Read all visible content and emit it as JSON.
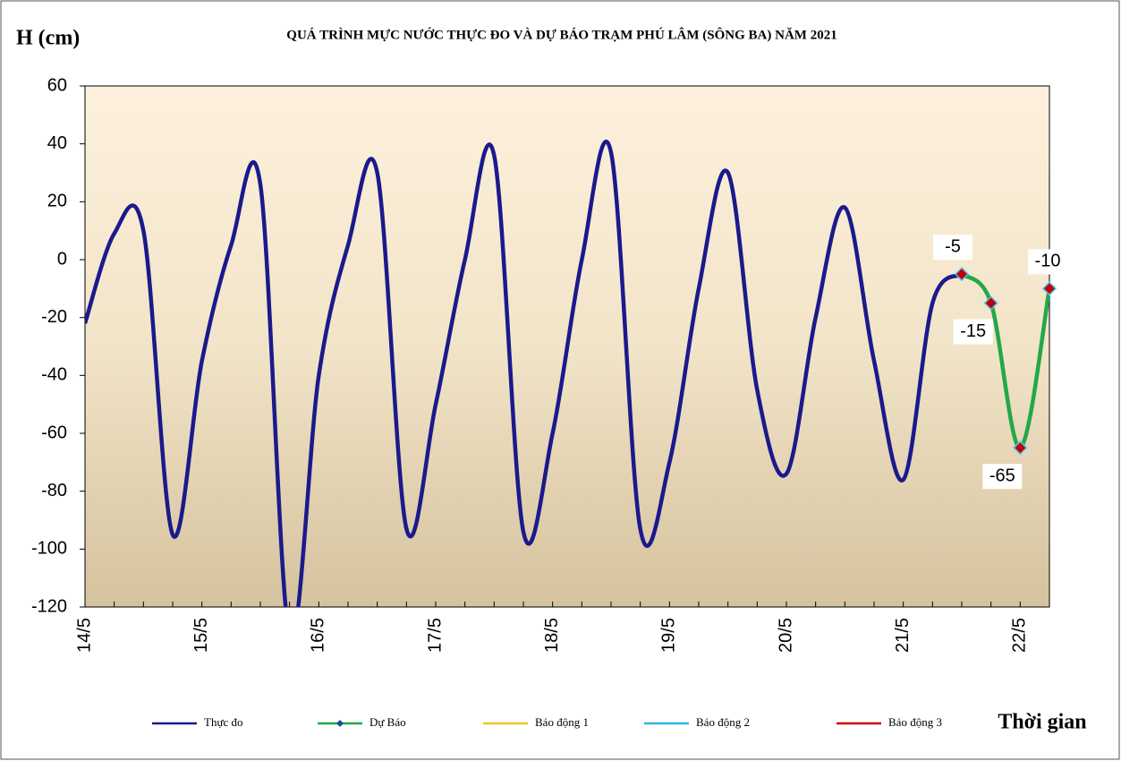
{
  "chart_data": {
    "type": "line",
    "title": "QUÁ TRÌNH MỰC NƯỚC THỰC ĐO VÀ DỰ BÁO TRẠM PHÚ LÂM (SÔNG BA) NĂM 2021",
    "y_label": "H (cm)",
    "x_label": "Thời gian",
    "categories": [
      "14/5",
      null,
      null,
      null,
      "15/5",
      null,
      null,
      null,
      "16/5",
      null,
      null,
      null,
      "17/5",
      null,
      null,
      null,
      "18/5",
      null,
      null,
      null,
      "19/5",
      null,
      null,
      null,
      "20/5",
      null,
      null,
      null,
      "21/5",
      null,
      null,
      null,
      "22/5",
      null
    ],
    "series": [
      {
        "name": "Thực đo",
        "color": "#1a1a8c",
        "values": [
          -22,
          9,
          10,
          -95,
          -35,
          5,
          26,
          -130,
          -40,
          5,
          30,
          -93,
          -50,
          0,
          36,
          -94,
          -60,
          0,
          37,
          -93,
          -70,
          -10,
          30,
          -45,
          -74,
          -20,
          18,
          -35,
          -76,
          -15,
          -5,
          null,
          null,
          null
        ]
      },
      {
        "name": "Dự Báo",
        "color": "#22a848",
        "values": [
          null,
          null,
          null,
          null,
          null,
          null,
          null,
          null,
          null,
          null,
          null,
          null,
          null,
          null,
          null,
          null,
          null,
          null,
          null,
          null,
          null,
          null,
          null,
          null,
          null,
          null,
          null,
          null,
          null,
          null,
          -5,
          -15,
          -65,
          -10
        ]
      },
      {
        "name": "Báo động 1",
        "color": "#f5c518",
        "values": [
          null,
          null,
          null,
          null,
          null,
          null,
          null,
          null,
          null,
          null,
          null,
          null,
          null,
          null,
          null,
          null,
          null,
          null,
          null,
          null,
          null,
          null,
          null,
          null,
          null,
          null,
          null,
          null,
          null,
          null,
          null,
          null,
          null,
          null
        ]
      },
      {
        "name": "Báo động 2",
        "color": "#33b5e5",
        "values": [
          null,
          null,
          null,
          null,
          null,
          null,
          null,
          null,
          null,
          null,
          null,
          null,
          null,
          null,
          null,
          null,
          null,
          null,
          null,
          null,
          null,
          null,
          null,
          null,
          null,
          null,
          null,
          null,
          null,
          null,
          null,
          null,
          null,
          null
        ]
      },
      {
        "name": "Báo động 3",
        "color": "#cc0000",
        "values": [
          null,
          null,
          null,
          null,
          null,
          null,
          null,
          null,
          null,
          null,
          null,
          null,
          null,
          null,
          null,
          null,
          null,
          null,
          null,
          null,
          null,
          null,
          null,
          null,
          null,
          null,
          null,
          null,
          null,
          null,
          null,
          null,
          null,
          null
        ]
      }
    ],
    "ylim": [
      -120,
      60
    ],
    "yticks": [
      -120,
      -100,
      -80,
      -60,
      -40,
      -20,
      0,
      20,
      40,
      60
    ]
  }
}
